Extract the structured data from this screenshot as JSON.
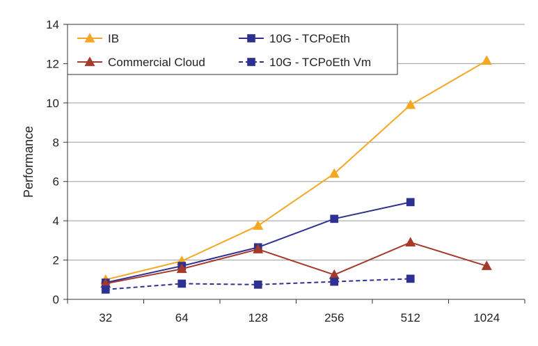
{
  "chart_data": {
    "type": "line",
    "title": "",
    "xlabel": "",
    "ylabel": "Performance",
    "categories": [
      "32",
      "64",
      "128",
      "256",
      "512",
      "1024"
    ],
    "ylim": [
      0,
      14
    ],
    "yticks": [
      0,
      2,
      4,
      6,
      8,
      10,
      12,
      14
    ],
    "grid": "horizontal",
    "legend_position": "top-left",
    "series": [
      {
        "name": "IB",
        "values": [
          1.0,
          1.95,
          3.75,
          6.4,
          9.9,
          12.15
        ],
        "color": "#f5a623",
        "marker": "triangle",
        "dash": "solid"
      },
      {
        "name": "10G - TCPoEth",
        "values": [
          0.85,
          1.7,
          2.65,
          4.1,
          4.95,
          null
        ],
        "color": "#2e3192",
        "marker": "square",
        "dash": "solid"
      },
      {
        "name": "Commercial Cloud",
        "values": [
          0.8,
          1.55,
          2.55,
          1.25,
          2.9,
          1.7
        ],
        "color": "#a63a2a",
        "marker": "triangle",
        "dash": "solid"
      },
      {
        "name": "10G - TCPoEth Vm",
        "values": [
          0.5,
          0.8,
          0.75,
          0.9,
          1.05,
          null
        ],
        "color": "#2e3192",
        "marker": "square",
        "dash": "dashed"
      }
    ]
  }
}
